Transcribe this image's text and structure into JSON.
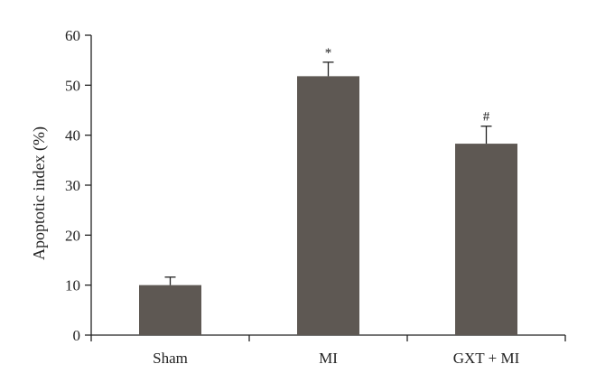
{
  "chart_data": {
    "type": "bar",
    "categories": [
      "Sham",
      "MI",
      "GXT + MI"
    ],
    "values": [
      10,
      51.8,
      38.3
    ],
    "error_bars": [
      1.6,
      2.8,
      3.5
    ],
    "annotations": [
      "",
      "*",
      "#"
    ],
    "title": "",
    "xlabel": "",
    "ylabel": "Apoptotic index (%)",
    "ylim": [
      0,
      60
    ],
    "yticks": [
      0,
      10,
      20,
      30,
      40,
      50,
      60
    ],
    "grid": false,
    "legend": "none",
    "bar_color": "#5e5853",
    "axis_color": "#222222"
  }
}
